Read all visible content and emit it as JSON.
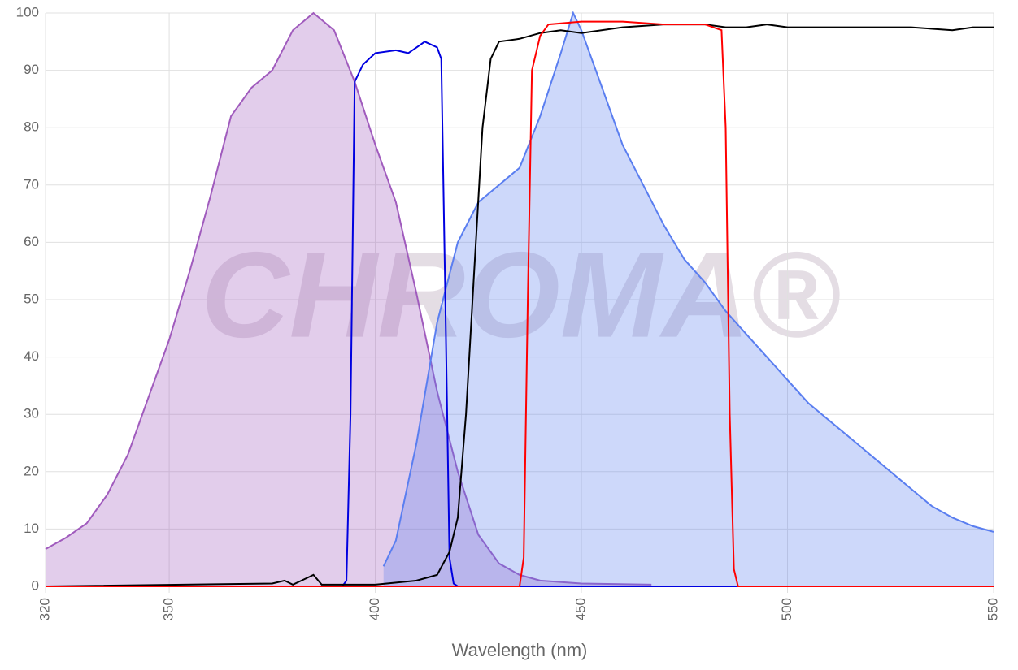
{
  "chart_data": {
    "type": "line",
    "watermark": "CHROMA®",
    "x_label": "Wavelength (nm)",
    "xlim": [
      320,
      550
    ],
    "xticks": [
      320,
      350,
      400,
      450,
      500,
      550
    ],
    "ylim": [
      0,
      100
    ],
    "yticks": [
      0,
      10,
      20,
      30,
      40,
      50,
      60,
      70,
      80,
      90,
      100
    ],
    "grid": true,
    "series": [
      {
        "color": "#a05bbd",
        "fill": true,
        "x": [
          320,
          325,
          330,
          335,
          340,
          345,
          350,
          355,
          360,
          365,
          370,
          375,
          380,
          385,
          390,
          395,
          400,
          405,
          410,
          415,
          420,
          425,
          430,
          435,
          440,
          450,
          467
        ],
        "values": [
          6.5,
          8.5,
          11,
          16,
          23,
          33,
          43,
          55,
          68,
          82,
          87,
          90,
          97,
          100,
          97,
          88,
          77,
          67,
          51,
          34,
          20,
          9,
          4,
          2,
          1,
          0.5,
          0.3
        ]
      },
      {
        "color": "#5a7ef0",
        "fill": true,
        "x": [
          402,
          405,
          410,
          415,
          420,
          425,
          430,
          435,
          440,
          445,
          448,
          450,
          455,
          460,
          465,
          470,
          475,
          480,
          485,
          490,
          495,
          500,
          505,
          510,
          515,
          520,
          525,
          530,
          535,
          540,
          545,
          550
        ],
        "values": [
          3.5,
          8,
          25,
          46,
          60,
          67,
          70,
          73,
          82,
          93,
          100,
          97,
          87,
          77,
          70,
          63,
          57,
          53,
          48,
          44,
          40,
          36,
          32,
          29,
          26,
          23,
          20,
          17,
          14,
          12,
          10.5,
          9.5
        ]
      },
      {
        "color": "#0000e0",
        "fill": false,
        "x": [
          320,
          392,
          393,
          394,
          395,
          397,
          400,
          405,
          408,
          410,
          412,
          415,
          416,
          417,
          418,
          419,
          420,
          550
        ],
        "values": [
          0,
          0,
          1,
          30,
          88,
          91,
          93,
          93.5,
          93,
          94,
          95,
          94,
          92,
          50,
          5,
          0.5,
          0,
          0
        ]
      },
      {
        "color": "#000000",
        "fill": false,
        "x": [
          320,
          375,
          378,
          380,
          385,
          387,
          400,
          410,
          415,
          418,
          420,
          422,
          424,
          426,
          428,
          430,
          435,
          440,
          445,
          450,
          460,
          470,
          480,
          485,
          490,
          495,
          500,
          510,
          520,
          530,
          540,
          545,
          550
        ],
        "values": [
          0,
          0.5,
          1,
          0.3,
          2,
          0.3,
          0.3,
          1,
          2,
          6,
          12,
          30,
          55,
          80,
          92,
          95,
          95.5,
          96.5,
          97,
          96.5,
          97.5,
          98,
          98,
          97.5,
          97.5,
          98,
          97.5,
          97.5,
          97.5,
          97.5,
          97,
          97.5,
          97.5
        ]
      },
      {
        "color": "#ff0000",
        "fill": false,
        "x": [
          320,
          435,
          436,
          437,
          438,
          440,
          442,
          450,
          460,
          470,
          480,
          484,
          485,
          486,
          487,
          488,
          550
        ],
        "values": [
          0,
          0,
          5,
          50,
          90,
          96,
          98,
          98.5,
          98.5,
          98,
          98,
          97,
          80,
          30,
          3,
          0,
          0
        ]
      }
    ]
  }
}
